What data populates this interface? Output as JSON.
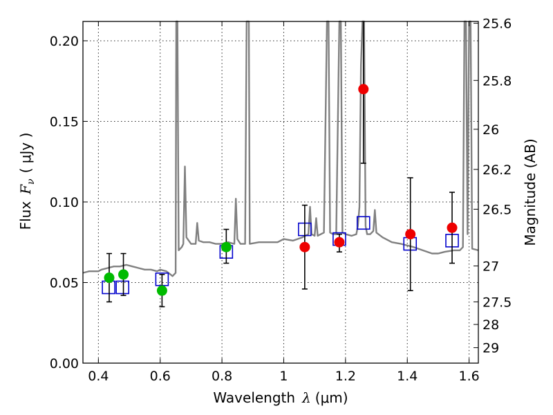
{
  "chart_data": {
    "type": "scatter",
    "title": "",
    "xlabel_prefix": "Wavelength",
    "xlabel_symbol": "λ",
    "xlabel_unit": "(μm)",
    "ylabel_prefix": "Flux",
    "ylabel_symbol": "F",
    "ylabel_subscript": "ν",
    "ylabel_unit": "( μJy )",
    "y2label": "Magnitude (AB)",
    "xlim": [
      0.35,
      1.63
    ],
    "ylim": [
      0.0,
      0.212
    ],
    "grid": true,
    "legend": "none",
    "x_ticks": [
      {
        "value": 0.4,
        "label": "0.4"
      },
      {
        "value": 0.6,
        "label": "0.6"
      },
      {
        "value": 0.8,
        "label": "0.8"
      },
      {
        "value": 1.0,
        "label": "1"
      },
      {
        "value": 1.2,
        "label": "1.2"
      },
      {
        "value": 1.4,
        "label": "1.4"
      },
      {
        "value": 1.6,
        "label": "1.6"
      }
    ],
    "y_ticks": [
      {
        "value": 0.0,
        "label": "0.00"
      },
      {
        "value": 0.05,
        "label": "0.05"
      },
      {
        "value": 0.1,
        "label": "0.10"
      },
      {
        "value": 0.15,
        "label": "0.15"
      },
      {
        "value": 0.2,
        "label": "0.20"
      }
    ],
    "y2_ticks": [
      {
        "flux": 0.2109,
        "label": "25.6"
      },
      {
        "flux": 0.1754,
        "label": "25.8"
      },
      {
        "flux": 0.1451,
        "label": "26"
      },
      {
        "flux": 0.1202,
        "label": "26.2"
      },
      {
        "flux": 0.0955,
        "label": "26.5"
      },
      {
        "flux": 0.0603,
        "label": "27"
      },
      {
        "flux": 0.038,
        "label": "27.5"
      },
      {
        "flux": 0.024,
        "label": "28"
      },
      {
        "flux": 0.0096,
        "label": "29"
      }
    ],
    "colors": {
      "template": "#808080",
      "model_box": "#0000cc",
      "photometry_a": "#00bb00",
      "photometry_b": "#ee0000",
      "errorbar": "#000000"
    },
    "series": [
      {
        "style": "line",
        "points": [
          [
            0.35,
            0.056
          ],
          [
            0.37,
            0.057
          ],
          [
            0.4,
            0.057
          ],
          [
            0.41,
            0.058
          ],
          [
            0.43,
            0.059
          ],
          [
            0.45,
            0.06
          ],
          [
            0.47,
            0.06
          ],
          [
            0.49,
            0.061
          ],
          [
            0.51,
            0.06
          ],
          [
            0.53,
            0.059
          ],
          [
            0.55,
            0.058
          ],
          [
            0.57,
            0.058
          ],
          [
            0.59,
            0.057
          ],
          [
            0.6,
            0.058
          ],
          [
            0.62,
            0.057
          ],
          [
            0.64,
            0.054
          ],
          [
            0.65,
            0.056
          ],
          [
            0.652,
            0.212
          ],
          [
            0.656,
            0.212
          ],
          [
            0.66,
            0.07
          ],
          [
            0.67,
            0.072
          ],
          [
            0.675,
            0.074
          ],
          [
            0.68,
            0.122
          ],
          [
            0.685,
            0.078
          ],
          [
            0.7,
            0.074
          ],
          [
            0.715,
            0.074
          ],
          [
            0.72,
            0.087
          ],
          [
            0.725,
            0.076
          ],
          [
            0.74,
            0.075
          ],
          [
            0.76,
            0.075
          ],
          [
            0.78,
            0.074
          ],
          [
            0.8,
            0.074
          ],
          [
            0.82,
            0.075
          ],
          [
            0.84,
            0.074
          ],
          [
            0.845,
            0.102
          ],
          [
            0.85,
            0.077
          ],
          [
            0.86,
            0.074
          ],
          [
            0.875,
            0.074
          ],
          [
            0.88,
            0.212
          ],
          [
            0.887,
            0.212
          ],
          [
            0.89,
            0.074
          ],
          [
            0.92,
            0.075
          ],
          [
            0.95,
            0.075
          ],
          [
            0.98,
            0.075
          ],
          [
            1.0,
            0.077
          ],
          [
            1.03,
            0.076
          ],
          [
            1.06,
            0.078
          ],
          [
            1.08,
            0.08
          ],
          [
            1.085,
            0.097
          ],
          [
            1.09,
            0.08
          ],
          [
            1.1,
            0.079
          ],
          [
            1.105,
            0.09
          ],
          [
            1.11,
            0.079
          ],
          [
            1.12,
            0.08
          ],
          [
            1.13,
            0.081
          ],
          [
            1.14,
            0.212
          ],
          [
            1.145,
            0.212
          ],
          [
            1.15,
            0.081
          ],
          [
            1.16,
            0.08
          ],
          [
            1.17,
            0.08
          ],
          [
            1.18,
            0.212
          ],
          [
            1.185,
            0.212
          ],
          [
            1.19,
            0.081
          ],
          [
            1.2,
            0.08
          ],
          [
            1.22,
            0.079
          ],
          [
            1.235,
            0.08
          ],
          [
            1.24,
            0.085
          ],
          [
            1.245,
            0.097
          ],
          [
            1.25,
            0.185
          ],
          [
            1.255,
            0.212
          ],
          [
            1.26,
            0.212
          ],
          [
            1.265,
            0.085
          ],
          [
            1.27,
            0.08
          ],
          [
            1.28,
            0.08
          ],
          [
            1.29,
            0.082
          ],
          [
            1.295,
            0.095
          ],
          [
            1.3,
            0.081
          ],
          [
            1.32,
            0.078
          ],
          [
            1.35,
            0.075
          ],
          [
            1.38,
            0.074
          ],
          [
            1.4,
            0.073
          ],
          [
            1.42,
            0.072
          ],
          [
            1.45,
            0.07
          ],
          [
            1.48,
            0.068
          ],
          [
            1.5,
            0.068
          ],
          [
            1.52,
            0.069
          ],
          [
            1.55,
            0.07
          ],
          [
            1.57,
            0.07
          ],
          [
            1.58,
            0.072
          ],
          [
            1.585,
            0.212
          ],
          [
            1.59,
            0.212
          ],
          [
            1.595,
            0.08
          ],
          [
            1.6,
            0.212
          ],
          [
            1.605,
            0.212
          ],
          [
            1.61,
            0.071
          ],
          [
            1.63,
            0.07
          ]
        ]
      },
      {
        "style": "open-square",
        "points": [
          [
            0.433,
            0.047
          ],
          [
            0.478,
            0.047
          ],
          [
            0.606,
            0.052
          ],
          [
            0.814,
            0.069
          ],
          [
            1.068,
            0.083
          ],
          [
            1.18,
            0.077
          ],
          [
            1.258,
            0.087
          ],
          [
            1.409,
            0.074
          ],
          [
            1.545,
            0.076
          ]
        ]
      },
      {
        "style": "filled-circle",
        "points": [
          [
            0.435,
            0.053
          ],
          [
            0.481,
            0.055
          ],
          [
            0.606,
            0.045
          ],
          [
            0.814,
            0.072
          ]
        ],
        "errors": [
          [
            0.015,
            0.015
          ],
          [
            0.013,
            0.013
          ],
          [
            0.01,
            0.01
          ],
          [
            0.01,
            0.011
          ]
        ]
      },
      {
        "style": "filled-circle",
        "points": [
          [
            1.068,
            0.072
          ],
          [
            1.18,
            0.075
          ],
          [
            1.258,
            0.17
          ],
          [
            1.41,
            0.08
          ],
          [
            1.545,
            0.084
          ]
        ],
        "errors": [
          [
            0.026,
            0.026
          ],
          [
            0.006,
            0.005
          ],
          [
            0.046,
            0.046
          ],
          [
            0.035,
            0.035
          ],
          [
            0.022,
            0.022
          ]
        ]
      }
    ]
  }
}
